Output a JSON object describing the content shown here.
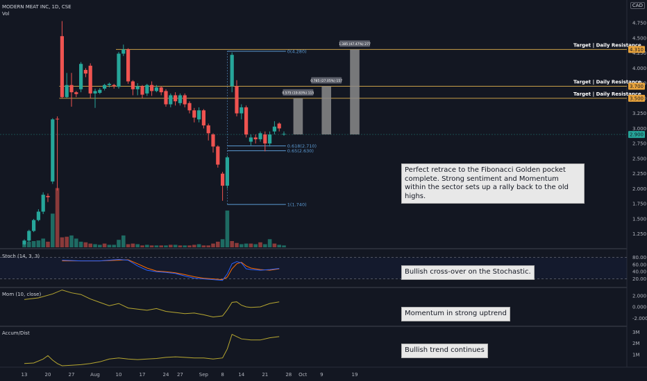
{
  "header": {
    "title": "MODERN MEAT INC, 1D, CSE",
    "volume_label": "Vol",
    "currency": "CAD"
  },
  "colors": {
    "background": "#131722",
    "up": "#26a69a",
    "down": "#ef5350",
    "gold_line": "#c9a04a",
    "fib_blue": "#5b9bd5",
    "stoch_k": "#2962ff",
    "stoch_d": "#ff6d00",
    "indicator_line": "#b8a830",
    "projection_box": "#8a8a8a"
  },
  "notes": {
    "fib_note": "Perfect retrace to the Fibonacci Golden pocket complete. Strong sentiment and Momentum within the sector sets up a rally back to the old highs.",
    "stoch_note": "Bullish cross-over on the Stochastic.",
    "mom_note": "Momentum in strong uptrend",
    "accum_note": "Bullish trend continues"
  },
  "panes": {
    "stoch_label": "Stoch (14, 3, 3)",
    "mom_label": "Mom (10, close)",
    "accum_label": "Accum/Dist"
  },
  "chart_data": {
    "type": "candlestick",
    "price_axis_ticks": [
      "4.750",
      "4.500",
      "4.250",
      "4.000",
      "3.750",
      "3.500",
      "3.250",
      "3.000",
      "2.750",
      "2.500",
      "2.250",
      "2.000",
      "1.750",
      "1.500",
      "1.250"
    ],
    "price_range": [
      1.04,
      4.9
    ],
    "price_badges": [
      {
        "value": 4.31,
        "label": "4.310",
        "color": "#e8a33c"
      },
      {
        "value": 3.7,
        "label": "3.700",
        "color": "#e8a33c"
      },
      {
        "value": 3.5,
        "label": "3.500",
        "color": "#e8a33c"
      },
      {
        "value": 2.9,
        "label": "2.900",
        "color": "#26a69a"
      }
    ],
    "x_axis_labels": [
      {
        "label": "13",
        "day": 0
      },
      {
        "label": "20",
        "day": 5
      },
      {
        "label": "27",
        "day": 10
      },
      {
        "label": "Aug",
        "day": 15
      },
      {
        "label": "10",
        "day": 20
      },
      {
        "label": "17",
        "day": 25
      },
      {
        "label": "24",
        "day": 30
      },
      {
        "label": "27",
        "day": 33
      },
      {
        "label": "Sep",
        "day": 38
      },
      {
        "label": "8",
        "day": 42
      },
      {
        "label": "14",
        "day": 46
      },
      {
        "label": "21",
        "day": 51
      },
      {
        "label": "28",
        "day": 56
      },
      {
        "label": "Oct",
        "day": 59
      },
      {
        "label": "9",
        "day": 63
      },
      {
        "label": "19",
        "day": 70
      }
    ],
    "candles": [
      [
        0,
        1.08,
        1.14,
        1.06,
        1.16
      ],
      [
        1,
        1.14,
        1.3,
        1.12,
        1.32
      ],
      [
        2,
        1.3,
        1.48,
        1.28,
        1.5
      ],
      [
        3,
        1.48,
        1.62,
        1.46,
        1.66
      ],
      [
        4,
        1.62,
        1.9,
        1.58,
        1.94
      ],
      [
        5,
        1.88,
        1.86,
        1.78,
        1.92
      ],
      [
        6,
        2.12,
        3.15,
        2.08,
        3.17
      ],
      [
        7,
        3.16,
        3.15,
        1.97,
        3.2
      ],
      [
        8,
        4.53,
        3.52,
        3.5,
        4.78
      ],
      [
        9,
        3.52,
        3.72,
        3.5,
        3.92
      ],
      [
        10,
        3.72,
        3.6,
        3.36,
        3.92
      ],
      [
        11,
        3.6,
        3.57,
        3.52,
        3.62
      ],
      [
        12,
        3.65,
        4.07,
        3.6,
        4.1
      ],
      [
        13,
        3.97,
        3.91,
        3.85,
        4.0
      ],
      [
        14,
        4.04,
        3.58,
        3.5,
        4.08
      ],
      [
        15,
        3.58,
        3.62,
        3.34,
        3.66
      ],
      [
        16,
        3.59,
        3.64,
        3.57,
        3.67
      ],
      [
        17,
        3.66,
        3.72,
        3.63,
        3.74
      ],
      [
        18,
        3.72,
        3.74,
        3.68,
        3.76
      ],
      [
        19,
        3.72,
        3.7,
        3.66,
        3.74
      ],
      [
        20,
        3.69,
        4.24,
        3.66,
        4.27
      ],
      [
        21,
        4.24,
        4.31,
        4.2,
        4.39
      ],
      [
        22,
        4.31,
        3.78,
        3.74,
        4.33
      ],
      [
        23,
        3.78,
        3.65,
        3.55,
        3.8
      ],
      [
        24,
        3.65,
        3.7,
        3.55,
        3.75
      ],
      [
        25,
        3.7,
        3.56,
        3.5,
        3.72
      ],
      [
        26,
        3.58,
        3.72,
        3.54,
        3.74
      ],
      [
        27,
        3.72,
        3.62,
        3.54,
        3.78
      ],
      [
        28,
        3.62,
        3.68,
        3.6,
        3.72
      ],
      [
        29,
        3.68,
        3.6,
        3.55,
        3.7
      ],
      [
        30,
        3.62,
        3.4,
        3.36,
        3.65
      ],
      [
        31,
        3.4,
        3.55,
        3.35,
        3.58
      ],
      [
        32,
        3.55,
        3.45,
        3.38,
        3.6
      ],
      [
        33,
        3.42,
        3.55,
        3.38,
        3.58
      ],
      [
        34,
        3.55,
        3.4,
        3.35,
        3.58
      ],
      [
        35,
        3.42,
        3.3,
        3.25,
        3.45
      ],
      [
        36,
        3.3,
        3.18,
        3.1,
        3.34
      ],
      [
        37,
        3.15,
        3.3,
        3.1,
        3.35
      ],
      [
        38,
        3.3,
        3.05,
        3.0,
        3.32
      ],
      [
        39,
        3.05,
        2.92,
        2.8,
        3.08
      ],
      [
        40,
        2.9,
        2.7,
        2.6,
        2.92
      ],
      [
        41,
        2.7,
        2.4,
        2.35,
        2.72
      ],
      [
        42,
        2.25,
        2.05,
        1.8,
        2.28
      ],
      [
        43,
        2.05,
        2.52,
        2.0,
        2.55
      ],
      [
        44,
        3.7,
        4.22,
        3.6,
        4.26
      ],
      [
        45,
        3.7,
        3.25,
        3.2,
        3.8
      ],
      [
        46,
        3.25,
        3.35,
        3.15,
        3.4
      ],
      [
        47,
        3.35,
        2.9,
        2.85,
        3.38
      ],
      [
        48,
        2.78,
        2.85,
        2.72,
        2.9
      ],
      [
        49,
        2.85,
        2.82,
        2.75,
        2.9
      ],
      [
        50,
        2.82,
        2.92,
        2.78,
        2.95
      ],
      [
        51,
        2.9,
        2.75,
        2.62,
        2.95
      ],
      [
        52,
        2.75,
        2.9,
        2.7,
        2.95
      ],
      [
        53,
        2.95,
        3.03,
        2.9,
        3.12
      ],
      [
        54,
        3.08,
        3.0,
        2.95,
        3.1
      ],
      [
        55,
        2.9,
        2.91,
        2.88,
        2.95
      ]
    ],
    "volume_max": 10,
    "volume": [
      [
        0,
        0.6,
        "up"
      ],
      [
        1,
        0.9,
        "up"
      ],
      [
        2,
        1.0,
        "up"
      ],
      [
        3,
        1.1,
        "up"
      ],
      [
        4,
        1.4,
        "up"
      ],
      [
        5,
        0.9,
        "down"
      ],
      [
        6,
        5.4,
        "up"
      ],
      [
        7,
        9.5,
        "down"
      ],
      [
        8,
        1.6,
        "down"
      ],
      [
        9,
        1.7,
        "down"
      ],
      [
        10,
        1.9,
        "up"
      ],
      [
        11,
        1.4,
        "up"
      ],
      [
        12,
        0.9,
        "up"
      ],
      [
        13,
        0.8,
        "down"
      ],
      [
        14,
        0.6,
        "down"
      ],
      [
        15,
        0.5,
        "up"
      ],
      [
        16,
        0.4,
        "up"
      ],
      [
        17,
        0.6,
        "down"
      ],
      [
        18,
        0.4,
        "up"
      ],
      [
        19,
        0.4,
        "up"
      ],
      [
        20,
        1.2,
        "up"
      ],
      [
        21,
        1.9,
        "up"
      ],
      [
        22,
        0.5,
        "down"
      ],
      [
        23,
        0.6,
        "down"
      ],
      [
        24,
        0.5,
        "up"
      ],
      [
        25,
        0.3,
        "down"
      ],
      [
        26,
        0.4,
        "up"
      ],
      [
        27,
        0.3,
        "down"
      ],
      [
        28,
        0.3,
        "up"
      ],
      [
        29,
        0.3,
        "down"
      ],
      [
        30,
        0.3,
        "up"
      ],
      [
        31,
        0.4,
        "down"
      ],
      [
        32,
        0.4,
        "up"
      ],
      [
        33,
        0.3,
        "down"
      ],
      [
        34,
        0.3,
        "up"
      ],
      [
        35,
        0.3,
        "down"
      ],
      [
        36,
        0.4,
        "down"
      ],
      [
        37,
        0.5,
        "up"
      ],
      [
        38,
        0.3,
        "down"
      ],
      [
        39,
        0.3,
        "down"
      ],
      [
        40,
        0.6,
        "down"
      ],
      [
        41,
        0.9,
        "down"
      ],
      [
        42,
        1.3,
        "up"
      ],
      [
        43,
        5.9,
        "up"
      ],
      [
        44,
        1.0,
        "down"
      ],
      [
        45,
        0.7,
        "down"
      ],
      [
        46,
        0.5,
        "up"
      ],
      [
        47,
        0.6,
        "up"
      ],
      [
        48,
        0.6,
        "down"
      ],
      [
        49,
        0.5,
        "up"
      ],
      [
        50,
        0.8,
        "down"
      ],
      [
        51,
        0.5,
        "up"
      ],
      [
        52,
        1.3,
        "up"
      ],
      [
        53,
        0.6,
        "down"
      ],
      [
        54,
        0.4,
        "up"
      ],
      [
        55,
        0.3,
        "up"
      ]
    ],
    "horizontal_lines": [
      {
        "price": 4.31,
        "label": "Target | Daily Resistance",
        "from_day": 20
      },
      {
        "price": 3.7,
        "label": "Target | Daily Resistance",
        "from_day": 8
      },
      {
        "price": 3.5,
        "label": "Target | Daily Resistance",
        "from_day": 8
      }
    ],
    "fib_levels": [
      {
        "price": 4.28,
        "label": "0(4.280)",
        "from_day": 43,
        "to_day": 56
      },
      {
        "price": 2.71,
        "label": "0.618(2.710)",
        "from_day": 43,
        "to_day": 56
      },
      {
        "price": 2.63,
        "label": "0.65(2.630)",
        "from_day": 43,
        "to_day": 56
      },
      {
        "price": 1.74,
        "label": "1(1.740)",
        "from_day": 43,
        "to_day": 56
      }
    ],
    "projections": [
      {
        "from_day": 57,
        "to_day": 59,
        "bottom": 2.9,
        "top": 3.5,
        "label": "0.575 (19.83%) 115"
      },
      {
        "from_day": 63,
        "to_day": 65,
        "bottom": 2.9,
        "top": 3.7,
        "label": "0.785 (27.05%) 157"
      },
      {
        "from_day": 69,
        "to_day": 71,
        "bottom": 2.9,
        "top": 4.31,
        "label": "1.385 (47.47%) 277"
      }
    ],
    "stoch_ticks": [
      "80.00",
      "60.00",
      "40.00",
      "20.00"
    ],
    "stoch_k": [
      [
        8,
        72
      ],
      [
        12,
        70
      ],
      [
        16,
        70
      ],
      [
        20,
        74
      ],
      [
        22,
        72
      ],
      [
        24,
        56
      ],
      [
        26,
        44
      ],
      [
        28,
        40
      ],
      [
        30,
        38
      ],
      [
        32,
        35
      ],
      [
        34,
        28
      ],
      [
        36,
        22
      ],
      [
        38,
        20
      ],
      [
        40,
        18
      ],
      [
        42,
        16
      ],
      [
        43,
        34
      ],
      [
        44,
        62
      ],
      [
        45,
        68
      ],
      [
        46,
        64
      ],
      [
        47,
        48
      ],
      [
        48,
        46
      ],
      [
        50,
        44
      ],
      [
        52,
        46
      ],
      [
        54,
        49
      ]
    ],
    "stoch_d": [
      [
        8,
        70
      ],
      [
        12,
        70
      ],
      [
        16,
        70
      ],
      [
        20,
        72
      ],
      [
        22,
        73
      ],
      [
        24,
        62
      ],
      [
        26,
        50
      ],
      [
        28,
        42
      ],
      [
        30,
        40
      ],
      [
        32,
        37
      ],
      [
        34,
        32
      ],
      [
        36,
        26
      ],
      [
        38,
        22
      ],
      [
        40,
        20
      ],
      [
        42,
        18
      ],
      [
        43,
        25
      ],
      [
        44,
        48
      ],
      [
        45,
        62
      ],
      [
        46,
        66
      ],
      [
        47,
        56
      ],
      [
        48,
        50
      ],
      [
        50,
        46
      ],
      [
        52,
        44
      ],
      [
        54,
        48
      ]
    ],
    "mom_ticks": [
      "2.000",
      "0.000",
      "-2.000"
    ],
    "mom": [
      [
        0,
        1.3
      ],
      [
        3,
        1.6
      ],
      [
        6,
        2.3
      ],
      [
        8,
        3.0
      ],
      [
        10,
        2.5
      ],
      [
        12,
        2.2
      ],
      [
        14,
        1.4
      ],
      [
        16,
        0.8
      ],
      [
        18,
        0.2
      ],
      [
        20,
        0.6
      ],
      [
        22,
        -0.2
      ],
      [
        24,
        -0.4
      ],
      [
        26,
        -0.6
      ],
      [
        28,
        -0.3
      ],
      [
        30,
        -0.8
      ],
      [
        32,
        -1.0
      ],
      [
        34,
        -1.2
      ],
      [
        36,
        -1.1
      ],
      [
        38,
        -1.4
      ],
      [
        40,
        -1.8
      ],
      [
        42,
        -1.6
      ],
      [
        43,
        -0.5
      ],
      [
        44,
        0.8
      ],
      [
        45,
        0.9
      ],
      [
        46,
        0.3
      ],
      [
        47,
        0.0
      ],
      [
        48,
        -0.1
      ],
      [
        50,
        0.0
      ],
      [
        52,
        0.6
      ],
      [
        54,
        0.9
      ]
    ],
    "accum_ticks": [
      "3M",
      "2M",
      "1M"
    ],
    "accum": [
      [
        0,
        0.2
      ],
      [
        2,
        0.25
      ],
      [
        4,
        0.6
      ],
      [
        5,
        0.9
      ],
      [
        6,
        0.5
      ],
      [
        7,
        0.2
      ],
      [
        8,
        0.0
      ],
      [
        10,
        0.05
      ],
      [
        12,
        0.1
      ],
      [
        14,
        0.2
      ],
      [
        16,
        0.35
      ],
      [
        18,
        0.6
      ],
      [
        20,
        0.7
      ],
      [
        22,
        0.6
      ],
      [
        24,
        0.55
      ],
      [
        26,
        0.6
      ],
      [
        28,
        0.65
      ],
      [
        30,
        0.75
      ],
      [
        32,
        0.8
      ],
      [
        34,
        0.75
      ],
      [
        36,
        0.7
      ],
      [
        38,
        0.7
      ],
      [
        40,
        0.6
      ],
      [
        42,
        0.7
      ],
      [
        43,
        1.5
      ],
      [
        44,
        2.8
      ],
      [
        45,
        2.6
      ],
      [
        46,
        2.4
      ],
      [
        48,
        2.3
      ],
      [
        50,
        2.3
      ],
      [
        52,
        2.5
      ],
      [
        54,
        2.6
      ]
    ]
  }
}
